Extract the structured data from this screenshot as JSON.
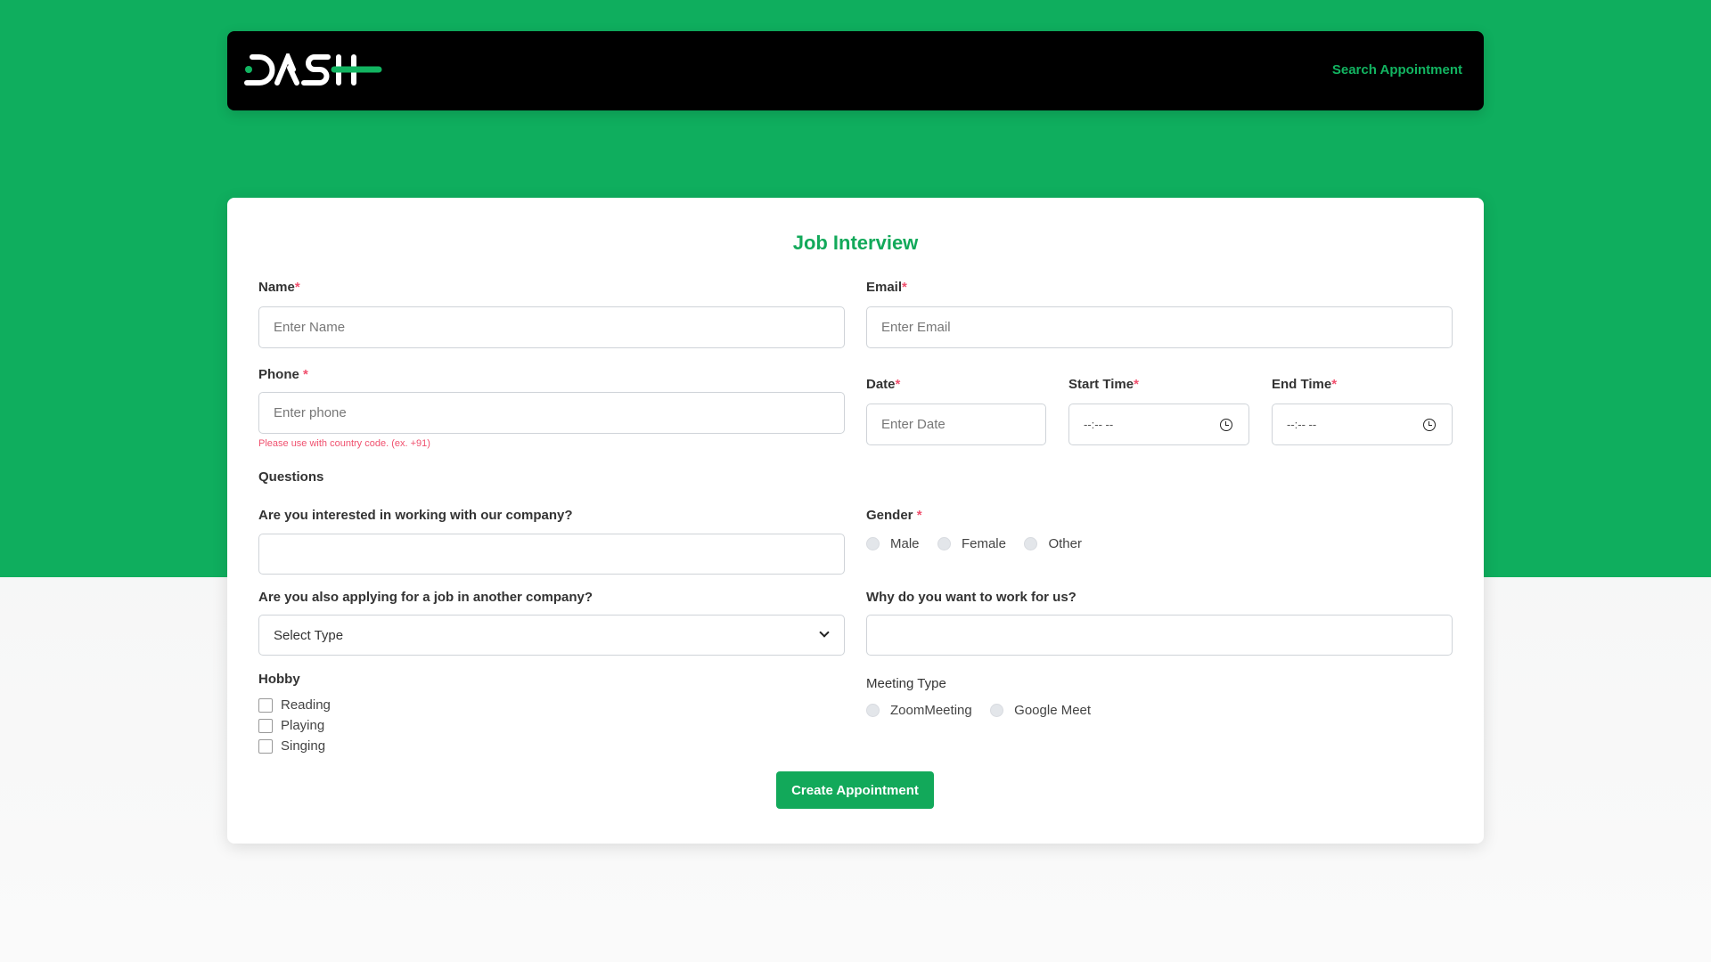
{
  "header": {
    "logo_text": "DASH",
    "search_link": "Search Appointment"
  },
  "form": {
    "title": "Job Interview",
    "name": {
      "label": "Name",
      "req": "*",
      "placeholder": "Enter Name"
    },
    "email": {
      "label": "Email",
      "req": "*",
      "placeholder": "Enter Email"
    },
    "phone": {
      "label": "Phone ",
      "req": "*",
      "placeholder": "Enter phone",
      "help": "Please use with country code. (ex. +91)"
    },
    "date": {
      "label": "Date",
      "req": "*",
      "placeholder": "Enter Date"
    },
    "start_time": {
      "label": "Start Time",
      "req": "*",
      "value": "--:-- --"
    },
    "end_time": {
      "label": "End Time",
      "req": "*",
      "value": "--:-- --"
    },
    "questions_heading": "Questions",
    "q1": {
      "label": "Are you interested in working with our company?",
      "value": ""
    },
    "gender": {
      "label": "Gender ",
      "req": "*",
      "options": [
        "Male",
        "Female",
        "Other"
      ]
    },
    "q2": {
      "label": "Are you also applying for a job in another company?",
      "selected": "Select Type"
    },
    "why": {
      "label": "Why do you want to work for us?",
      "value": ""
    },
    "hobby": {
      "label": "Hobby",
      "options": [
        "Reading",
        "Playing",
        "Singing"
      ]
    },
    "meeting": {
      "label": "Meeting Type",
      "options": [
        "ZoomMeeting",
        "Google Meet"
      ]
    },
    "submit": "Create Appointment"
  },
  "colors": {
    "brand": "#0fae5e",
    "required": "#f0506e"
  }
}
